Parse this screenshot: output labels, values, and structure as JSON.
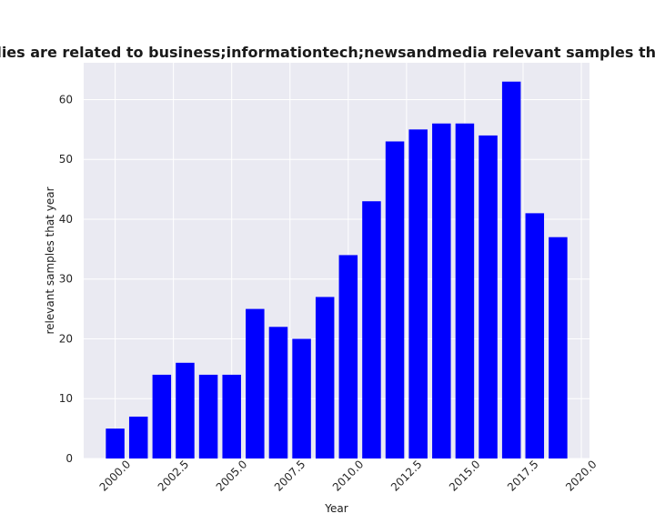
{
  "chart_data": {
    "type": "bar",
    "title": "Number of studies are related to business;informationtech;newsandmedia relevant samples that year in privacy",
    "xlabel": "Year",
    "ylabel": "relevant samples that year",
    "x": [
      2000,
      2001,
      2002,
      2003,
      2004,
      2005,
      2006,
      2007,
      2008,
      2009,
      2010,
      2011,
      2012,
      2013,
      2014,
      2015,
      2016,
      2017,
      2018,
      2019
    ],
    "values": [
      5,
      7,
      14,
      16,
      14,
      14,
      25,
      22,
      20,
      27,
      34,
      43,
      53,
      55,
      56,
      56,
      54,
      63,
      41,
      37
    ],
    "xlim": [
      1998.65,
      2020.35
    ],
    "ylim": [
      0,
      66.15
    ],
    "xticks": [
      2000.0,
      2002.5,
      2005.0,
      2007.5,
      2010.0,
      2012.5,
      2015.0,
      2017.5,
      2020.0
    ],
    "xtick_labels": [
      "2000.0",
      "2002.5",
      "2005.0",
      "2007.5",
      "2010.0",
      "2012.5",
      "2015.0",
      "2017.5",
      "2020.0"
    ],
    "yticks": [
      0,
      10,
      20,
      30,
      40,
      50,
      60
    ],
    "ytick_labels": [
      "0",
      "10",
      "20",
      "30",
      "40",
      "50",
      "60"
    ],
    "bar_color": "#0000ff",
    "plot_background": "#eaeaf2",
    "grid_color": "#ffffff",
    "grid": true
  }
}
